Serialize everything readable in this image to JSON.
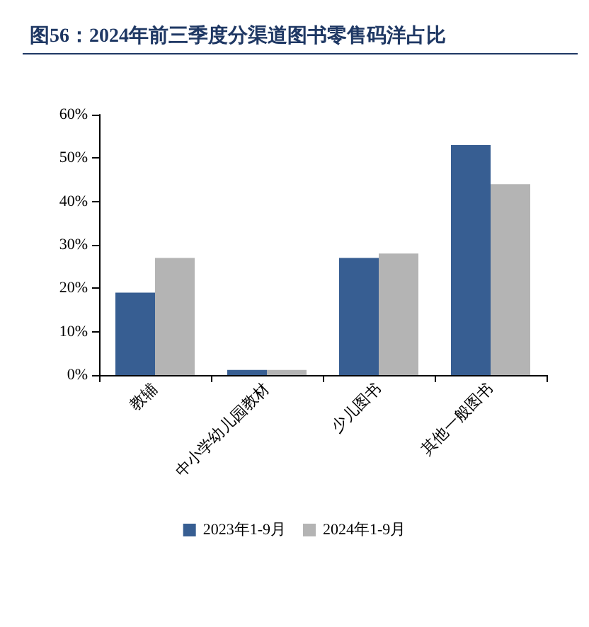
{
  "chart_data": {
    "type": "bar",
    "title": "图56：2024年前三季度分渠道图书零售码洋占比",
    "categories": [
      "教辅",
      "中小学幼儿园教材",
      "少儿图书",
      "其他一般图书"
    ],
    "series": [
      {
        "name": "2023年1-9月",
        "color": "#375e92",
        "values": [
          19,
          1.2,
          27,
          53
        ]
      },
      {
        "name": "2024年1-9月",
        "color": "#b4b4b4",
        "values": [
          27,
          1.2,
          28,
          44
        ]
      }
    ],
    "ylim": [
      0,
      60
    ],
    "yticks": [
      {
        "value": 0,
        "label": "0%"
      },
      {
        "value": 10,
        "label": "10%"
      },
      {
        "value": 20,
        "label": "20%"
      },
      {
        "value": 30,
        "label": "30%"
      },
      {
        "value": 40,
        "label": "40%"
      },
      {
        "value": 50,
        "label": "50%"
      },
      {
        "value": 60,
        "label": "60%"
      }
    ],
    "grid": false,
    "legend": "bottom"
  }
}
